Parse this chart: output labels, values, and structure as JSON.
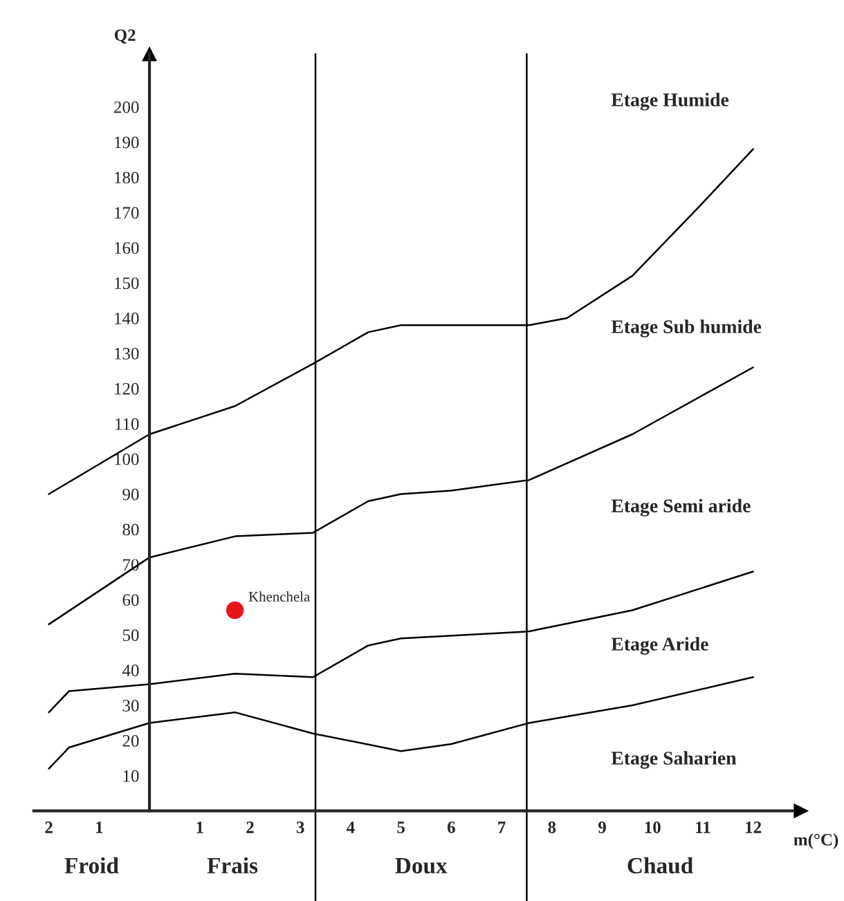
{
  "chart_data": {
    "type": "line",
    "xlabel": "m(°C)",
    "ylabel": "Q2",
    "xlim": [
      -2.3,
      12.8
    ],
    "ylim": [
      0,
      215
    ],
    "xticks": [
      {
        "value": -2,
        "label": "2"
      },
      {
        "value": -1,
        "label": "1"
      },
      {
        "value": 0,
        "label": null
      },
      1,
      2,
      3,
      4,
      5,
      6,
      7,
      8,
      9,
      10,
      11,
      12
    ],
    "yticks": [
      10,
      20,
      30,
      40,
      50,
      60,
      70,
      80,
      90,
      100,
      110,
      120,
      130,
      140,
      150,
      160,
      170,
      180,
      190,
      200
    ],
    "grid": false,
    "legend": false,
    "series": [
      {
        "color": "#000000",
        "x": [
          -2,
          0,
          1.7,
          3.25,
          4.35,
          5,
          7.55,
          8.3,
          9.6,
          10.95,
          12
        ],
        "values": [
          90,
          107,
          115,
          127,
          136,
          138,
          138,
          140,
          152,
          172,
          188
        ]
      },
      {
        "color": "#000000",
        "x": [
          -2,
          0,
          1.7,
          3.25,
          4.35,
          5,
          6,
          7.55,
          9.6,
          12
        ],
        "values": [
          53,
          72,
          78,
          79,
          88,
          90,
          91,
          94,
          107,
          126
        ]
      },
      {
        "color": "#000000",
        "x": [
          -2,
          -1.6,
          0,
          1.7,
          3.25,
          4.35,
          5,
          7.55,
          9.6,
          12
        ],
        "values": [
          28,
          34,
          36,
          39,
          38,
          47,
          49,
          51,
          57,
          68
        ]
      },
      {
        "color": "#000000",
        "x": [
          -2,
          -1.6,
          0,
          1.7,
          3.25,
          5,
          6,
          7.55,
          9.6,
          12
        ],
        "values": [
          12,
          18,
          25,
          28,
          22,
          17,
          19,
          25,
          30,
          38
        ]
      },
      {
        "type": "scatter",
        "name": "Khenchela",
        "color": "#e8141b",
        "marker": "circle",
        "x": [
          1.7
        ],
        "values": [
          57
        ]
      }
    ],
    "ref_lines": [
      {
        "axis": "x",
        "value": 3.3,
        "color": "#000000"
      },
      {
        "axis": "x",
        "value": 7.5,
        "color": "#000000"
      }
    ],
    "annotations": [
      "Etage Humide",
      "Etage Sub humide",
      "Etage Semi aride",
      "Etage Aride",
      "Etage Saharien",
      "Froid",
      "Frais",
      "Doux",
      "Chaud"
    ]
  }
}
